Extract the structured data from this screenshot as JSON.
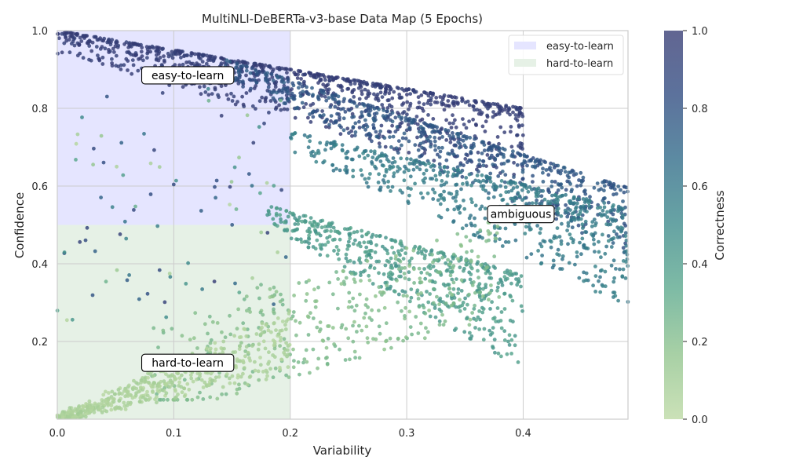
{
  "chart_data": {
    "type": "scatter",
    "title": "MultiNLI-DeBERTa-v3-base Data Map (5 Epochs)",
    "xlabel": "Variability",
    "ylabel": "Confidence",
    "xlim": [
      0.0,
      0.49
    ],
    "ylim": [
      0.0,
      1.0
    ],
    "xticks": [
      "0.0",
      "0.1",
      "0.2",
      "0.3",
      "0.4"
    ],
    "yticks": [
      "0.2",
      "0.4",
      "0.6",
      "0.8",
      "1.0"
    ],
    "grid": true,
    "legend_position": "top-right",
    "legend": [
      {
        "label": "easy-to-learn",
        "color": "#e5e5ff"
      },
      {
        "label": "hard-to-learn",
        "color": "#e6f1e6"
      }
    ],
    "regions": [
      {
        "name": "easy-to-learn",
        "x": [
          0.0,
          0.2
        ],
        "y": [
          0.5,
          1.0
        ],
        "color": "#e5e5ff"
      },
      {
        "name": "hard-to-learn",
        "x": [
          0.0,
          0.2
        ],
        "y": [
          0.0,
          0.5
        ],
        "color": "#e6f1e6"
      }
    ],
    "annotations": [
      {
        "text": "easy-to-learn",
        "x": 0.112,
        "y": 0.885
      },
      {
        "text": "ambiguous",
        "x": 0.398,
        "y": 0.528
      },
      {
        "text": "hard-to-learn",
        "x": 0.112,
        "y": 0.145
      }
    ],
    "colorbar": {
      "label": "Correctness",
      "range": [
        0.0,
        1.0
      ],
      "ticks": [
        "0.0",
        "0.2",
        "0.4",
        "0.6",
        "0.8",
        "1.0"
      ],
      "colors": [
        "#bcd9a3",
        "#8fc38c",
        "#5aa88c",
        "#3c8a8a",
        "#2e6a88",
        "#2e4a80",
        "#353a73"
      ]
    },
    "series_description": "points by correctness levels (0.0, 0.2, 0.4, 0.6, 0.8, 1.0)",
    "series": [
      {
        "correctness": 1.0,
        "confidence_range": [
          0.6,
          1.0
        ],
        "variability_range": [
          0.0,
          0.4
        ]
      },
      {
        "correctness": 0.8,
        "confidence_range": [
          0.55,
          0.82
        ],
        "variability_range": [
          0.2,
          0.49
        ]
      },
      {
        "correctness": 0.6,
        "confidence_range": [
          0.4,
          0.6
        ],
        "variability_range": [
          0.3,
          0.49
        ]
      },
      {
        "correctness": 0.4,
        "confidence_range": [
          0.2,
          0.45
        ],
        "variability_range": [
          0.25,
          0.4
        ]
      },
      {
        "correctness": 0.2,
        "confidence_range": [
          0.1,
          0.4
        ],
        "variability_range": [
          0.15,
          0.35
        ]
      },
      {
        "correctness": 0.0,
        "confidence_range": [
          0.0,
          0.3
        ],
        "variability_range": [
          0.0,
          0.2
        ]
      }
    ]
  }
}
